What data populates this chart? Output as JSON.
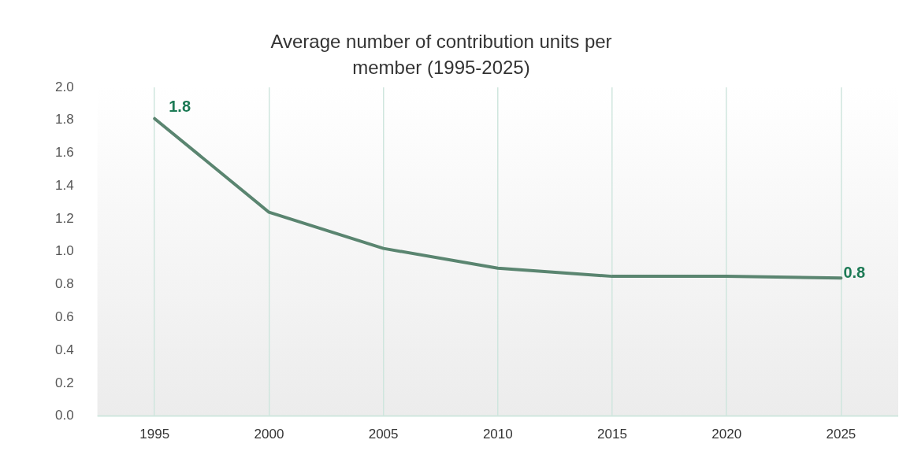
{
  "chart_data": {
    "type": "line",
    "title": "Average number of contribution units per member (1995-2025)",
    "categories": [
      "1995",
      "2000",
      "2005",
      "2010",
      "2015",
      "2020",
      "2025"
    ],
    "series": [
      {
        "color": "#5a8570",
        "values": [
          1.81,
          1.24,
          1.02,
          0.9,
          0.85,
          0.85,
          0.84
        ],
        "value_labels": [
          "1.8",
          null,
          null,
          null,
          null,
          null,
          "0.8"
        ]
      }
    ],
    "ylim": [
      0,
      2
    ],
    "yticks": [
      {
        "value": 0,
        "label": "0.0"
      },
      0.2,
      0.4,
      0.6,
      0.8,
      {
        "value": 1,
        "label": "1.0"
      },
      1.2,
      1.4,
      1.6,
      1.8,
      {
        "value": 2,
        "label": "2.0"
      }
    ],
    "grid": "x",
    "legend": false,
    "marker": "none",
    "line_style": "solid"
  }
}
